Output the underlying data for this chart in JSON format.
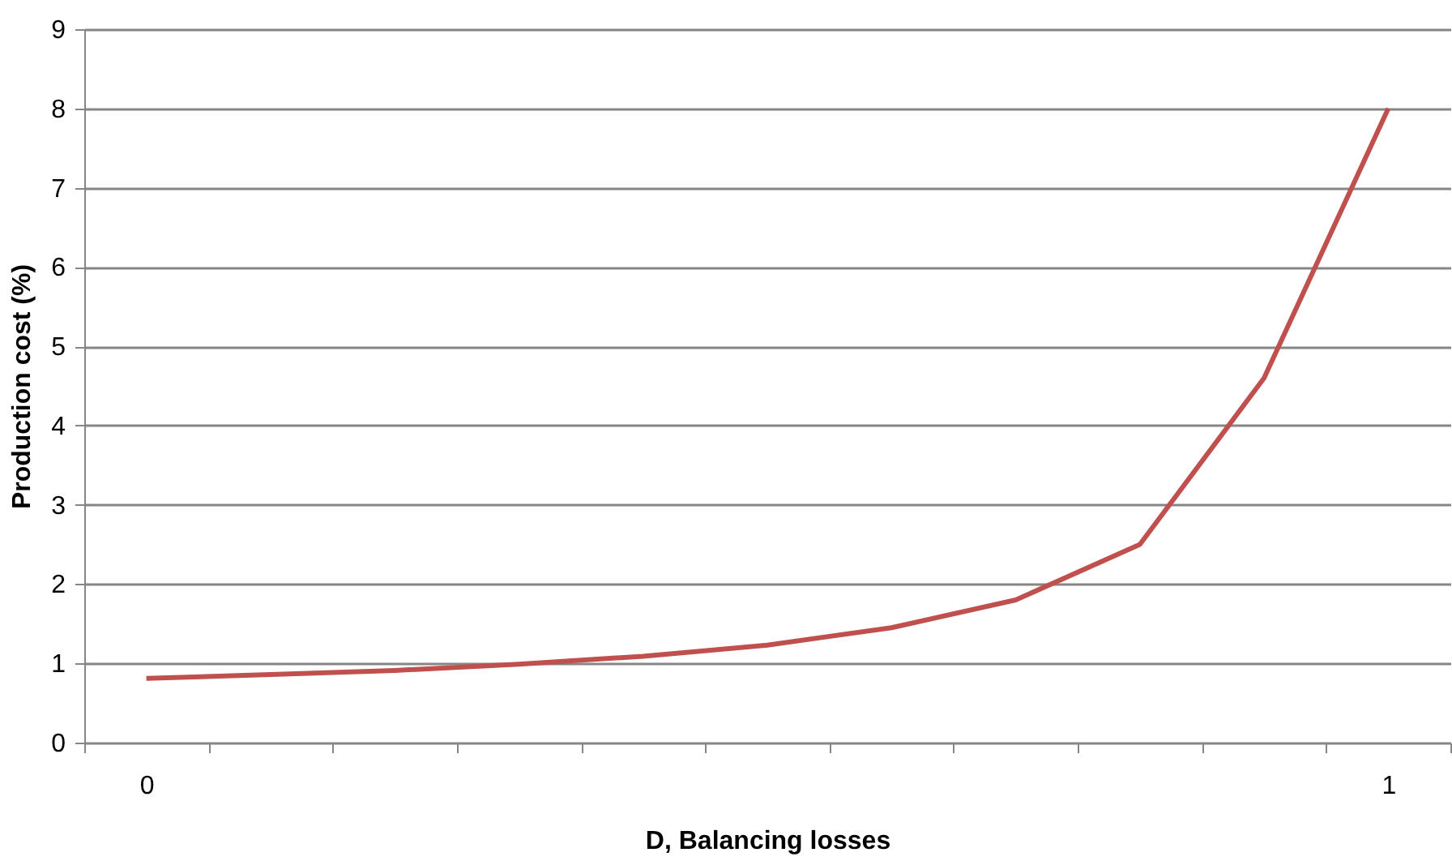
{
  "chart_data": {
    "type": "line",
    "xlabel": "D, Balancing losses",
    "ylabel": "Production cost (%)",
    "categories": [
      "0",
      null,
      null,
      null,
      null,
      null,
      null,
      null,
      null,
      null,
      "1"
    ],
    "series": [
      {
        "color": "#c0504d",
        "values": [
          0.81,
          0.86,
          0.91,
          0.99,
          1.09,
          1.23,
          1.45,
          1.8,
          2.5,
          4.6,
          8.0
        ]
      }
    ],
    "ylim": [
      0,
      9
    ],
    "yticks": [
      0,
      1,
      2,
      3,
      4,
      5,
      6,
      7,
      8,
      9
    ],
    "grid": "y",
    "legend": false,
    "marker": "none",
    "line_style": "solid"
  }
}
